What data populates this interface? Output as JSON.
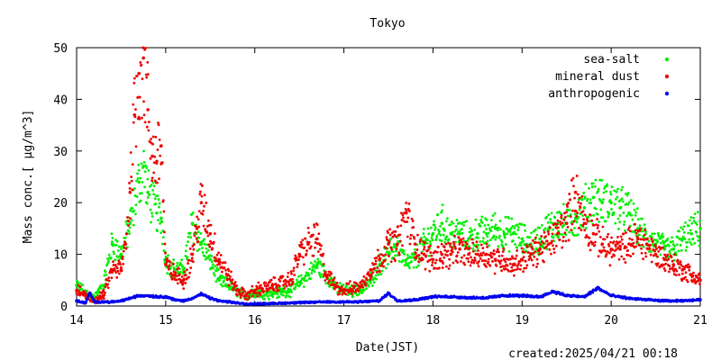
{
  "chart_data": {
    "type": "scatter",
    "title": "Tokyo",
    "xlabel": "Date(JST)",
    "ylabel": "Mass conc.[ μg/m^3]",
    "footer": "created:2025/04/21 00:18",
    "xlim": [
      14,
      21
    ],
    "ylim": [
      0,
      50
    ],
    "xticks": [
      "14",
      "15",
      "16",
      "17",
      "18",
      "19",
      "20",
      "21"
    ],
    "yticks": [
      "0",
      "10",
      "20",
      "30",
      "40",
      "50"
    ],
    "legend_position": "top-right",
    "grid": false,
    "series": [
      {
        "name": "sea-salt",
        "color": "#00ee00",
        "points": [
          [
            14.0,
            4.0
          ],
          [
            14.1,
            2.5
          ],
          [
            14.2,
            1.5
          ],
          [
            14.3,
            4.0
          ],
          [
            14.4,
            12.0
          ],
          [
            14.5,
            10.0
          ],
          [
            14.6,
            16.0
          ],
          [
            14.7,
            24.0
          ],
          [
            14.75,
            27.0
          ],
          [
            14.8,
            22.0
          ],
          [
            14.9,
            18.0
          ],
          [
            14.95,
            17.0
          ],
          [
            15.0,
            9.0
          ],
          [
            15.1,
            7.0
          ],
          [
            15.2,
            7.0
          ],
          [
            15.3,
            16.0
          ],
          [
            15.4,
            12.0
          ],
          [
            15.5,
            9.0
          ],
          [
            15.6,
            5.0
          ],
          [
            15.7,
            4.0
          ],
          [
            15.8,
            3.0
          ],
          [
            15.9,
            2.0
          ],
          [
            16.0,
            2.5
          ],
          [
            16.2,
            2.5
          ],
          [
            16.4,
            3.0
          ],
          [
            16.6,
            6.0
          ],
          [
            16.7,
            8.0
          ],
          [
            16.8,
            6.0
          ],
          [
            16.9,
            4.0
          ],
          [
            17.0,
            3.0
          ],
          [
            17.2,
            3.0
          ],
          [
            17.3,
            5.0
          ],
          [
            17.4,
            8.0
          ],
          [
            17.5,
            10.0
          ],
          [
            17.6,
            12.0
          ],
          [
            17.7,
            8.0
          ],
          [
            17.8,
            9.0
          ],
          [
            17.9,
            12.0
          ],
          [
            18.0,
            14.0
          ],
          [
            18.1,
            16.0
          ],
          [
            18.2,
            14.0
          ],
          [
            18.3,
            14.0
          ],
          [
            18.4,
            13.0
          ],
          [
            18.5,
            14.0
          ],
          [
            18.6,
            14.0
          ],
          [
            18.7,
            15.0
          ],
          [
            18.8,
            14.0
          ],
          [
            18.9,
            14.0
          ],
          [
            19.0,
            13.0
          ],
          [
            19.1,
            12.0
          ],
          [
            19.2,
            13.0
          ],
          [
            19.3,
            15.0
          ],
          [
            19.4,
            16.0
          ],
          [
            19.5,
            16.0
          ],
          [
            19.6,
            17.0
          ],
          [
            19.7,
            19.0
          ],
          [
            19.8,
            21.0
          ],
          [
            19.9,
            20.0
          ],
          [
            20.0,
            20.0
          ],
          [
            20.1,
            19.0
          ],
          [
            20.2,
            18.0
          ],
          [
            20.3,
            15.0
          ],
          [
            20.4,
            13.0
          ],
          [
            20.5,
            12.0
          ],
          [
            20.6,
            11.0
          ],
          [
            20.7,
            11.0
          ],
          [
            20.8,
            13.0
          ],
          [
            20.9,
            14.0
          ],
          [
            21.0,
            15.0
          ]
        ]
      },
      {
        "name": "mineral dust",
        "color": "#ee0000",
        "points": [
          [
            14.0,
            3.0
          ],
          [
            14.1,
            2.0
          ],
          [
            14.2,
            1.0
          ],
          [
            14.3,
            2.0
          ],
          [
            14.4,
            7.0
          ],
          [
            14.5,
            7.0
          ],
          [
            14.55,
            12.0
          ],
          [
            14.6,
            22.0
          ],
          [
            14.65,
            37.0
          ],
          [
            14.7,
            45.0
          ],
          [
            14.75,
            48.0
          ],
          [
            14.8,
            38.0
          ],
          [
            14.85,
            29.0
          ],
          [
            14.9,
            28.0
          ],
          [
            14.95,
            31.0
          ],
          [
            15.0,
            8.0
          ],
          [
            15.1,
            6.0
          ],
          [
            15.2,
            5.0
          ],
          [
            15.3,
            10.0
          ],
          [
            15.35,
            15.0
          ],
          [
            15.4,
            20.0
          ],
          [
            15.5,
            14.0
          ],
          [
            15.6,
            9.0
          ],
          [
            15.7,
            6.0
          ],
          [
            15.8,
            3.0
          ],
          [
            15.9,
            2.0
          ],
          [
            16.0,
            3.0
          ],
          [
            16.2,
            4.0
          ],
          [
            16.4,
            5.0
          ],
          [
            16.5,
            10.0
          ],
          [
            16.6,
            12.0
          ],
          [
            16.7,
            13.0
          ],
          [
            16.8,
            6.0
          ],
          [
            16.9,
            4.0
          ],
          [
            17.0,
            3.0
          ],
          [
            17.2,
            4.0
          ],
          [
            17.3,
            7.0
          ],
          [
            17.4,
            9.0
          ],
          [
            17.5,
            12.0
          ],
          [
            17.6,
            12.0
          ],
          [
            17.7,
            18.0
          ],
          [
            17.8,
            12.0
          ],
          [
            17.9,
            10.0
          ],
          [
            18.0,
            9.0
          ],
          [
            18.1,
            10.0
          ],
          [
            18.2,
            10.0
          ],
          [
            18.3,
            11.0
          ],
          [
            18.4,
            10.0
          ],
          [
            18.5,
            10.0
          ],
          [
            18.6,
            10.0
          ],
          [
            18.7,
            9.0
          ],
          [
            18.8,
            9.0
          ],
          [
            18.9,
            8.0
          ],
          [
            19.0,
            9.0
          ],
          [
            19.1,
            10.0
          ],
          [
            19.2,
            11.0
          ],
          [
            19.3,
            12.0
          ],
          [
            19.4,
            14.0
          ],
          [
            19.5,
            16.0
          ],
          [
            19.6,
            22.0
          ],
          [
            19.7,
            16.0
          ],
          [
            19.8,
            14.0
          ],
          [
            19.9,
            12.0
          ],
          [
            20.0,
            11.0
          ],
          [
            20.1,
            11.0
          ],
          [
            20.2,
            12.0
          ],
          [
            20.3,
            13.0
          ],
          [
            20.4,
            12.0
          ],
          [
            20.5,
            10.0
          ],
          [
            20.6,
            9.0
          ],
          [
            20.7,
            8.0
          ],
          [
            20.8,
            7.0
          ],
          [
            20.9,
            6.0
          ],
          [
            21.0,
            5.0
          ]
        ]
      },
      {
        "name": "anthropogenic",
        "color": "#0000ee",
        "points": [
          [
            14.0,
            1.0
          ],
          [
            14.1,
            0.6
          ],
          [
            14.15,
            2.5
          ],
          [
            14.2,
            0.8
          ],
          [
            14.3,
            0.8
          ],
          [
            14.4,
            0.8
          ],
          [
            14.5,
            1.0
          ],
          [
            14.6,
            1.5
          ],
          [
            14.7,
            2.0
          ],
          [
            14.8,
            2.0
          ],
          [
            14.9,
            1.8
          ],
          [
            15.0,
            1.8
          ],
          [
            15.1,
            1.2
          ],
          [
            15.2,
            1.0
          ],
          [
            15.3,
            1.5
          ],
          [
            15.4,
            2.3
          ],
          [
            15.5,
            1.5
          ],
          [
            15.6,
            1.0
          ],
          [
            15.7,
            0.8
          ],
          [
            15.8,
            0.6
          ],
          [
            15.9,
            0.4
          ],
          [
            16.0,
            0.4
          ],
          [
            16.2,
            0.5
          ],
          [
            16.4,
            0.6
          ],
          [
            16.6,
            0.7
          ],
          [
            16.8,
            0.8
          ],
          [
            17.0,
            0.8
          ],
          [
            17.2,
            0.8
          ],
          [
            17.4,
            1.0
          ],
          [
            17.5,
            2.5
          ],
          [
            17.6,
            1.0
          ],
          [
            17.8,
            1.2
          ],
          [
            18.0,
            1.8
          ],
          [
            18.2,
            1.8
          ],
          [
            18.4,
            1.6
          ],
          [
            18.6,
            1.6
          ],
          [
            18.8,
            2.0
          ],
          [
            19.0,
            2.0
          ],
          [
            19.2,
            1.8
          ],
          [
            19.35,
            2.8
          ],
          [
            19.5,
            2.0
          ],
          [
            19.7,
            1.8
          ],
          [
            19.85,
            3.5
          ],
          [
            20.0,
            2.0
          ],
          [
            20.2,
            1.5
          ],
          [
            20.4,
            1.2
          ],
          [
            20.6,
            1.0
          ],
          [
            20.8,
            1.0
          ],
          [
            21.0,
            1.2
          ]
        ]
      }
    ]
  }
}
